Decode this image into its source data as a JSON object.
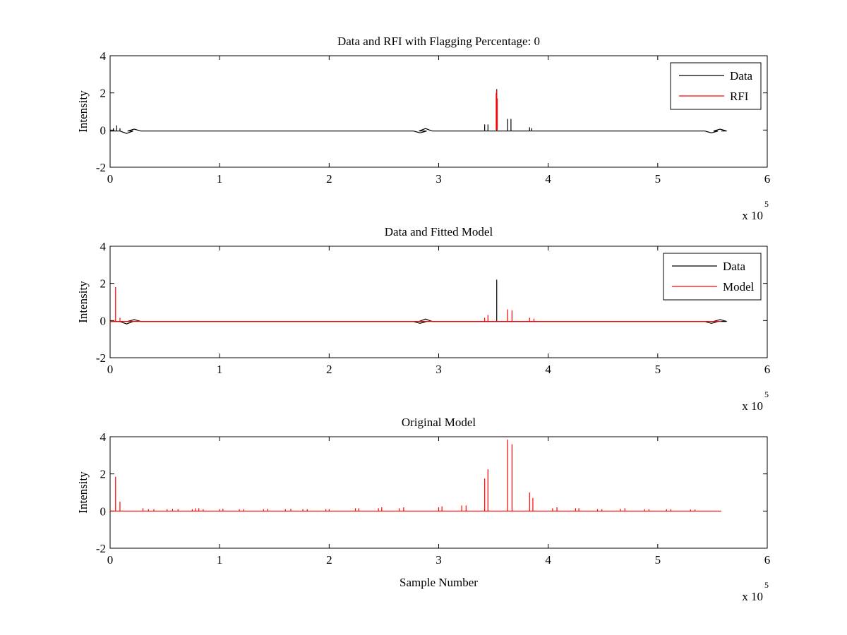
{
  "chart_data": [
    {
      "type": "line",
      "title": "Data and RFI with Flagging Percentage: 0",
      "xlabel": "",
      "ylabel": "Intensity",
      "xlim": [
        0,
        600000
      ],
      "ylim": [
        -2,
        4
      ],
      "x_ticks": [
        "0",
        "1",
        "2",
        "3",
        "4",
        "5",
        "6"
      ],
      "y_ticks": [
        "-2",
        "0",
        "2",
        "4"
      ],
      "x_exponent": {
        "base": "x 10",
        "power": "5"
      },
      "legend": {
        "position": "top-right",
        "entries": [
          {
            "label": "Data",
            "color": "#000000"
          },
          {
            "label": "RFI",
            "color": "#ff0000"
          }
        ]
      },
      "series": [
        {
          "name": "Data",
          "color": "#000000",
          "baseline": -0.05,
          "dips": [
            [
              15000,
              -0.18
            ],
            [
              283000,
              -0.15
            ],
            [
              549000,
              -0.15
            ]
          ],
          "bumps": [
            [
              22000,
              0.05
            ],
            [
              288000,
              0.08
            ],
            [
              557000,
              0.05
            ]
          ],
          "spikes": [
            [
              3000,
              0.1
            ],
            [
              6000,
              0.25
            ],
            [
              9000,
              0.1
            ],
            [
              342000,
              0.3
            ],
            [
              345000,
              0.3
            ],
            [
              353000,
              2.2
            ],
            [
              363000,
              0.6
            ],
            [
              366000,
              0.6
            ],
            [
              383000,
              0.15
            ],
            [
              385000,
              0.1
            ]
          ],
          "range": [
            0,
            558000
          ]
        },
        {
          "name": "RFI",
          "color": "#ff0000",
          "baseline": null,
          "spikes": [
            [
              352500,
              2.0
            ],
            [
              353000,
              2.15
            ],
            [
              353500,
              1.7
            ]
          ],
          "range": [
            352000,
            354000
          ]
        }
      ]
    },
    {
      "type": "line",
      "title": "Data and Fitted Model",
      "xlabel": "",
      "ylabel": "Intensity",
      "xlim": [
        0,
        600000
      ],
      "ylim": [
        -2,
        4
      ],
      "x_ticks": [
        "0",
        "1",
        "2",
        "3",
        "4",
        "5",
        "6"
      ],
      "y_ticks": [
        "-2",
        "0",
        "2",
        "4"
      ],
      "x_exponent": {
        "base": "x 10",
        "power": "5"
      },
      "legend": {
        "position": "top-right",
        "entries": [
          {
            "label": "Data",
            "color": "#000000"
          },
          {
            "label": "Model",
            "color": "#ff0000"
          }
        ]
      },
      "series": [
        {
          "name": "Data",
          "color": "#000000",
          "baseline": -0.05,
          "dips": [
            [
              15000,
              -0.18
            ],
            [
              283000,
              -0.15
            ],
            [
              549000,
              -0.15
            ]
          ],
          "bumps": [
            [
              22000,
              0.05
            ],
            [
              288000,
              0.08
            ],
            [
              557000,
              0.05
            ]
          ],
          "spikes": [
            [
              353000,
              2.2
            ]
          ],
          "range": [
            0,
            558000
          ]
        },
        {
          "name": "Model",
          "color": "#ff0000",
          "baseline": -0.05,
          "spikes": [
            [
              5000,
              1.8
            ],
            [
              9000,
              0.15
            ],
            [
              342000,
              0.15
            ],
            [
              345000,
              0.3
            ],
            [
              363000,
              0.6
            ],
            [
              367000,
              0.55
            ],
            [
              383000,
              0.15
            ],
            [
              387000,
              0.1
            ]
          ],
          "range": [
            0,
            558000
          ]
        }
      ]
    },
    {
      "type": "line",
      "title": "Original Model",
      "xlabel": "Sample Number",
      "ylabel": "Intensity",
      "xlim": [
        0,
        600000
      ],
      "ylim": [
        -2,
        4
      ],
      "x_ticks": [
        "0",
        "1",
        "2",
        "3",
        "4",
        "5",
        "6"
      ],
      "y_ticks": [
        "-2",
        "0",
        "2",
        "4"
      ],
      "x_exponent": {
        "base": "x 10",
        "power": "5"
      },
      "series": [
        {
          "name": "",
          "color": "#ff0000",
          "baseline": 0.0,
          "spikes": [
            [
              5000,
              1.85
            ],
            [
              9000,
              0.5
            ],
            [
              30000,
              0.15
            ],
            [
              35000,
              0.1
            ],
            [
              40000,
              0.1
            ],
            [
              52000,
              0.1
            ],
            [
              57000,
              0.12
            ],
            [
              62000,
              0.1
            ],
            [
              75000,
              0.1
            ],
            [
              78000,
              0.15
            ],
            [
              81000,
              0.15
            ],
            [
              85000,
              0.1
            ],
            [
              100000,
              0.1
            ],
            [
              103000,
              0.12
            ],
            [
              118000,
              0.1
            ],
            [
              122000,
              0.1
            ],
            [
              140000,
              0.1
            ],
            [
              144000,
              0.12
            ],
            [
              160000,
              0.1
            ],
            [
              165000,
              0.12
            ],
            [
              176000,
              0.1
            ],
            [
              180000,
              0.1
            ],
            [
              197000,
              0.1
            ],
            [
              200000,
              0.1
            ],
            [
              224000,
              0.15
            ],
            [
              227000,
              0.15
            ],
            [
              245000,
              0.15
            ],
            [
              248000,
              0.2
            ],
            [
              264000,
              0.15
            ],
            [
              268000,
              0.2
            ],
            [
              300000,
              0.2
            ],
            [
              303000,
              0.25
            ],
            [
              321000,
              0.3
            ],
            [
              325000,
              0.3
            ],
            [
              342000,
              1.75
            ],
            [
              345000,
              2.25
            ],
            [
              363000,
              3.85
            ],
            [
              367000,
              3.6
            ],
            [
              383000,
              1.0
            ],
            [
              386000,
              0.7
            ],
            [
              404000,
              0.15
            ],
            [
              408000,
              0.2
            ],
            [
              425000,
              0.15
            ],
            [
              428000,
              0.15
            ],
            [
              445000,
              0.1
            ],
            [
              449000,
              0.1
            ],
            [
              466000,
              0.12
            ],
            [
              470000,
              0.15
            ],
            [
              488000,
              0.1
            ],
            [
              492000,
              0.1
            ],
            [
              508000,
              0.1
            ],
            [
              512000,
              0.1
            ],
            [
              530000,
              0.08
            ],
            [
              534000,
              0.08
            ]
          ],
          "range": [
            0,
            558000
          ]
        }
      ]
    }
  ]
}
